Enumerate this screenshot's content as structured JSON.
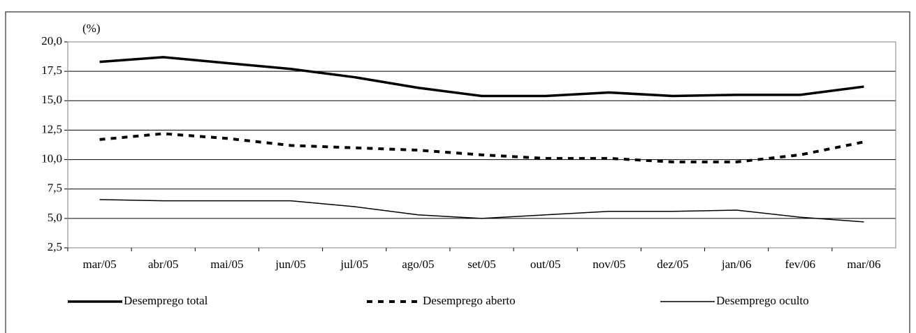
{
  "chart_data": {
    "type": "line",
    "y_unit_label": "(%)",
    "categories": [
      "mar/05",
      "abr/05",
      "mai/05",
      "jun/05",
      "jul/05",
      "ago/05",
      "set/05",
      "out/05",
      "nov/05",
      "dez/05",
      "jan/06",
      "fev/06",
      "mar/06"
    ],
    "series": [
      {
        "name": "Desemprego total",
        "color": "#000000",
        "style": "thick",
        "values": [
          18.3,
          18.7,
          18.2,
          17.7,
          17.0,
          16.1,
          15.4,
          15.4,
          15.7,
          15.4,
          15.5,
          15.5,
          16.2
        ]
      },
      {
        "name": "Desemprego aberto",
        "color": "#000000",
        "style": "dashed",
        "values": [
          11.7,
          12.2,
          11.8,
          11.2,
          11.0,
          10.8,
          10.4,
          10.1,
          10.1,
          9.8,
          9.8,
          10.4,
          11.5
        ]
      },
      {
        "name": "Desemprego oculto",
        "color": "#000000",
        "style": "thin",
        "values": [
          6.6,
          6.5,
          6.5,
          6.5,
          6.0,
          5.3,
          5.0,
          5.3,
          5.6,
          5.6,
          5.7,
          5.1,
          4.7
        ]
      }
    ],
    "ylim": [
      2.5,
      20
    ],
    "yticks": [
      {
        "value": 2.5,
        "label": "2,5"
      },
      {
        "value": 5,
        "label": "5,0"
      },
      {
        "value": 7.5,
        "label": "7,5"
      },
      {
        "value": 10,
        "label": "10,0"
      },
      {
        "value": 12.5,
        "label": "12,5"
      },
      {
        "value": 15,
        "label": "15,0"
      },
      {
        "value": 17.5,
        "label": "17,5"
      },
      {
        "value": 20,
        "label": "20,0"
      }
    ],
    "grid": true
  }
}
